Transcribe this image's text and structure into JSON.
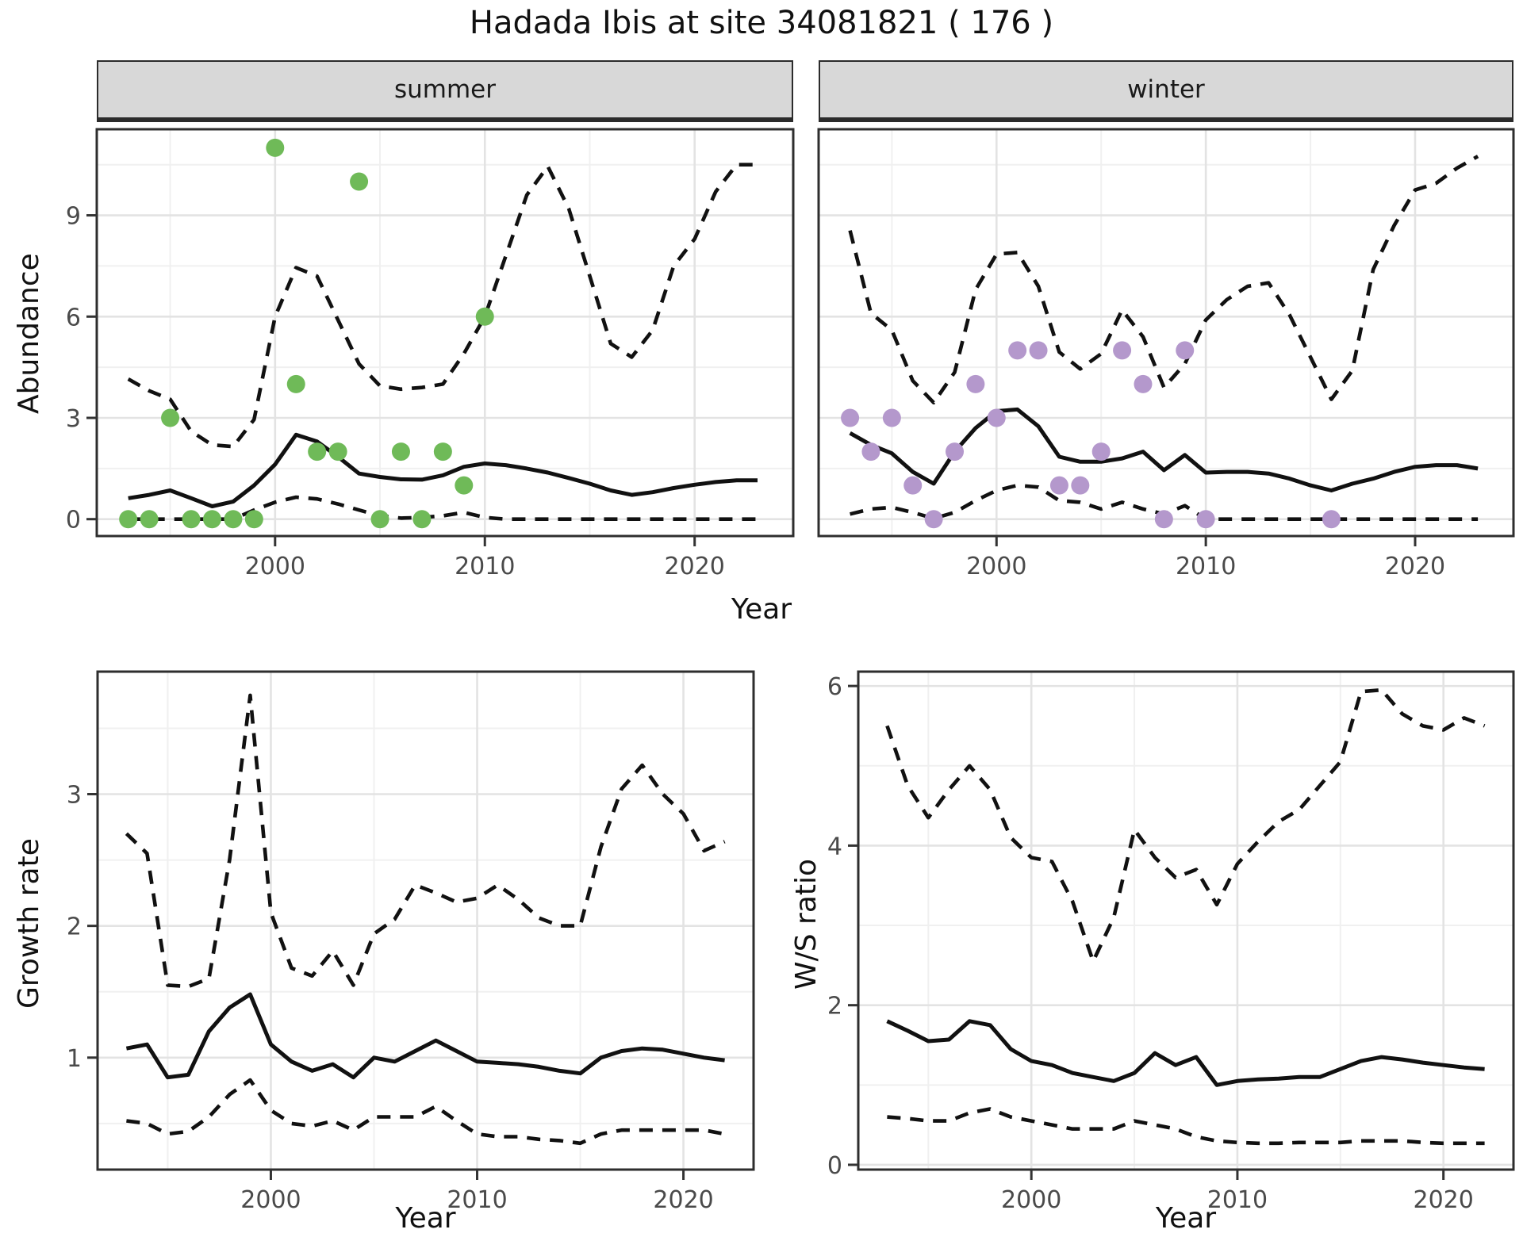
{
  "title": "Hadada Ibis at site 34081821 ( 176 )",
  "facets": {
    "summer": "summer",
    "winter": "winter"
  },
  "axis_titles": {
    "abundance": "Abundance",
    "year": "Year",
    "growth_rate": "Growth rate",
    "ws_ratio": "W/S ratio"
  },
  "colors": {
    "summer_points": "#6fba58",
    "winter_points": "#b498cc",
    "line": "#111111",
    "grid_major": "#e3e3e3",
    "grid_minor": "#f0f0f0",
    "panel_border": "#2e2e2e",
    "tick_mark": "#333333",
    "tick_text": "#4a4a4a",
    "strip_bg": "#d8d8d8"
  },
  "chart_data": [
    {
      "id": "summer-abundance",
      "type": "line",
      "facet": "summer",
      "xlabel": "Year",
      "ylabel": "Abundance",
      "xlim": [
        1991.5,
        2024.7
      ],
      "ylim": [
        -0.5,
        11.55
      ],
      "x_major": [
        2000,
        2010,
        2020
      ],
      "x_minor": [
        1995,
        2005,
        2015
      ],
      "y_major": [
        0,
        3,
        6,
        9
      ],
      "y_minor": [
        1.5,
        4.5,
        7.5,
        10.5
      ],
      "y_labels_shown": true,
      "years": [
        1993,
        1994,
        1995,
        1996,
        1997,
        1998,
        1999,
        2000,
        2001,
        2002,
        2003,
        2004,
        2005,
        2006,
        2007,
        2008,
        2009,
        2010,
        2011,
        2012,
        2013,
        2014,
        2015,
        2016,
        2017,
        2018,
        2019,
        2020,
        2021,
        2022,
        2023
      ],
      "series": [
        {
          "name": "upper CI",
          "style": "dashed",
          "values": [
            4.15,
            3.8,
            3.55,
            2.6,
            2.2,
            2.15,
            2.95,
            6.0,
            7.45,
            7.2,
            5.9,
            4.6,
            3.95,
            3.85,
            3.9,
            4.0,
            4.9,
            6.0,
            7.8,
            9.6,
            10.45,
            9.2,
            7.2,
            5.2,
            4.8,
            5.6,
            7.5,
            8.3,
            9.7,
            10.5,
            10.5
          ]
        },
        {
          "name": "median",
          "style": "solid",
          "values": [
            0.62,
            0.72,
            0.85,
            0.62,
            0.38,
            0.52,
            1.0,
            1.62,
            2.5,
            2.3,
            1.85,
            1.35,
            1.25,
            1.18,
            1.17,
            1.3,
            1.55,
            1.65,
            1.6,
            1.5,
            1.38,
            1.22,
            1.05,
            0.85,
            0.72,
            0.8,
            0.92,
            1.02,
            1.1,
            1.15,
            1.15
          ]
        },
        {
          "name": "lower CI",
          "style": "dashed",
          "values": [
            0,
            0,
            0,
            0,
            0,
            0,
            0.27,
            0.5,
            0.65,
            0.6,
            0.45,
            0.27,
            0.1,
            0.03,
            0.05,
            0.1,
            0.2,
            0.05,
            0,
            0,
            0,
            0,
            0,
            0,
            0,
            0,
            0,
            0,
            0,
            0,
            0
          ]
        }
      ],
      "points": {
        "color_key": "summer_points",
        "years": [
          1993,
          1994,
          1995,
          1996,
          1997,
          1998,
          1999,
          2000,
          2001,
          2002,
          2003,
          2004,
          2005,
          2006,
          2007,
          2008,
          2009,
          2010
        ],
        "values": [
          0,
          0,
          3,
          0,
          0,
          0,
          0,
          11,
          4,
          2,
          2,
          10,
          0,
          2,
          0,
          2,
          1,
          6
        ]
      }
    },
    {
      "id": "winter-abundance",
      "type": "line",
      "facet": "winter",
      "xlabel": "Year",
      "ylabel": "Abundance",
      "xlim": [
        1991.5,
        2024.7
      ],
      "ylim": [
        -0.5,
        11.55
      ],
      "x_major": [
        2000,
        2010,
        2020
      ],
      "x_minor": [
        1995,
        2005,
        2015
      ],
      "y_major": [
        0,
        3,
        6,
        9
      ],
      "y_minor": [
        1.5,
        4.5,
        7.5,
        10.5
      ],
      "y_labels_shown": false,
      "years": [
        1993,
        1994,
        1995,
        1996,
        1997,
        1998,
        1999,
        2000,
        2001,
        2002,
        2003,
        2004,
        2005,
        2006,
        2007,
        2008,
        2009,
        2010,
        2011,
        2012,
        2013,
        2014,
        2015,
        2016,
        2017,
        2018,
        2019,
        2020,
        2021,
        2022,
        2023
      ],
      "series": [
        {
          "name": "upper CI",
          "style": "dashed",
          "values": [
            8.55,
            6.1,
            5.6,
            4.1,
            3.45,
            4.35,
            6.8,
            7.85,
            7.9,
            6.9,
            4.95,
            4.45,
            4.9,
            6.2,
            5.4,
            3.9,
            4.6,
            5.9,
            6.5,
            6.9,
            7.0,
            6.05,
            4.8,
            3.55,
            4.4,
            7.4,
            8.7,
            9.75,
            9.95,
            10.4,
            10.75
          ]
        },
        {
          "name": "median",
          "style": "solid",
          "values": [
            2.55,
            2.2,
            1.95,
            1.4,
            1.05,
            2.0,
            2.7,
            3.2,
            3.25,
            2.75,
            1.85,
            1.7,
            1.7,
            1.8,
            2.0,
            1.45,
            1.9,
            1.38,
            1.4,
            1.4,
            1.35,
            1.2,
            1.0,
            0.85,
            1.05,
            1.2,
            1.4,
            1.55,
            1.6,
            1.6,
            1.5
          ]
        },
        {
          "name": "lower CI",
          "style": "dashed",
          "values": [
            0.15,
            0.3,
            0.35,
            0.2,
            0.02,
            0.2,
            0.55,
            0.85,
            1.0,
            0.95,
            0.55,
            0.5,
            0.3,
            0.5,
            0.3,
            0.15,
            0.4,
            0,
            0,
            0,
            0,
            0,
            0,
            0,
            0,
            0,
            0,
            0,
            0,
            0,
            0
          ]
        }
      ],
      "points": {
        "color_key": "winter_points",
        "years": [
          1993,
          1994,
          1995,
          1996,
          1997,
          1998,
          1999,
          2000,
          2001,
          2002,
          2003,
          2004,
          2005,
          2006,
          2007,
          2008,
          2009,
          2010,
          2016
        ],
        "values": [
          3,
          2,
          3,
          1,
          0,
          2,
          4,
          3,
          5,
          5,
          1,
          1,
          2,
          5,
          4,
          0,
          5,
          0,
          0
        ]
      }
    },
    {
      "id": "growth-rate",
      "type": "line",
      "facet": null,
      "xlabel": "Year",
      "ylabel": "Growth rate",
      "xlim": [
        1991.6,
        2023.4
      ],
      "ylim": [
        0.15,
        3.93
      ],
      "x_major": [
        2000,
        2010,
        2020
      ],
      "x_minor": [
        1995,
        2005,
        2015
      ],
      "y_major": [
        1,
        2,
        3
      ],
      "y_minor": [
        0.5,
        1.5,
        2.5,
        3.5
      ],
      "y_labels_shown": true,
      "years": [
        1993,
        1994,
        1995,
        1996,
        1997,
        1998,
        1999,
        2000,
        2001,
        2002,
        2003,
        2004,
        2005,
        2006,
        2007,
        2008,
        2009,
        2010,
        2011,
        2012,
        2013,
        2014,
        2015,
        2016,
        2017,
        2018,
        2019,
        2020,
        2021,
        2022
      ],
      "series": [
        {
          "name": "upper CI",
          "style": "dashed",
          "values": [
            2.7,
            2.55,
            1.55,
            1.54,
            1.6,
            2.5,
            3.75,
            2.1,
            1.68,
            1.62,
            1.81,
            1.55,
            1.94,
            2.05,
            2.31,
            2.25,
            2.18,
            2.21,
            2.31,
            2.2,
            2.06,
            2.0,
            2.0,
            2.6,
            3.04,
            3.22,
            3.0,
            2.85,
            2.57,
            2.64
          ]
        },
        {
          "name": "median",
          "style": "solid",
          "values": [
            1.07,
            1.1,
            0.85,
            0.87,
            1.2,
            1.38,
            1.48,
            1.1,
            0.97,
            0.9,
            0.95,
            0.85,
            1.0,
            0.97,
            1.05,
            1.13,
            1.05,
            0.97,
            0.96,
            0.95,
            0.93,
            0.9,
            0.88,
            1.0,
            1.05,
            1.07,
            1.06,
            1.03,
            1.0,
            0.98
          ]
        },
        {
          "name": "lower CI",
          "style": "dashed",
          "values": [
            0.52,
            0.5,
            0.42,
            0.44,
            0.55,
            0.72,
            0.83,
            0.6,
            0.5,
            0.48,
            0.52,
            0.45,
            0.55,
            0.55,
            0.55,
            0.63,
            0.52,
            0.42,
            0.4,
            0.4,
            0.38,
            0.37,
            0.35,
            0.42,
            0.45,
            0.45,
            0.45,
            0.45,
            0.45,
            0.42
          ]
        }
      ],
      "points": null
    },
    {
      "id": "ws-ratio",
      "type": "line",
      "facet": null,
      "xlabel": "Year",
      "ylabel": "W/S ratio",
      "xlim": [
        1991.6,
        2023.4
      ],
      "ylim": [
        -0.06,
        6.18
      ],
      "x_major": [
        2000,
        2010,
        2020
      ],
      "x_minor": [
        1995,
        2005,
        2015
      ],
      "y_major": [
        0,
        2,
        4,
        6
      ],
      "y_minor": [
        1,
        3,
        5
      ],
      "y_labels_shown": true,
      "years": [
        1993,
        1994,
        1995,
        1996,
        1997,
        1998,
        1999,
        2000,
        2001,
        2002,
        2003,
        2004,
        2005,
        2006,
        2007,
        2008,
        2009,
        2010,
        2011,
        2012,
        2013,
        2014,
        2015,
        2016,
        2017,
        2018,
        2019,
        2020,
        2021,
        2022
      ],
      "series": [
        {
          "name": "upper CI",
          "style": "dashed",
          "values": [
            5.5,
            4.75,
            4.35,
            4.7,
            5.0,
            4.7,
            4.1,
            3.85,
            3.8,
            3.3,
            2.55,
            3.1,
            4.2,
            3.85,
            3.6,
            3.7,
            3.26,
            3.77,
            4.05,
            4.3,
            4.45,
            4.75,
            5.05,
            5.93,
            5.95,
            5.65,
            5.5,
            5.45,
            5.6,
            5.5
          ]
        },
        {
          "name": "median",
          "style": "solid",
          "values": [
            1.8,
            1.68,
            1.55,
            1.57,
            1.8,
            1.75,
            1.45,
            1.3,
            1.25,
            1.15,
            1.1,
            1.05,
            1.15,
            1.4,
            1.25,
            1.35,
            1.0,
            1.05,
            1.07,
            1.08,
            1.1,
            1.1,
            1.2,
            1.3,
            1.35,
            1.32,
            1.28,
            1.25,
            1.22,
            1.2
          ]
        },
        {
          "name": "lower CI",
          "style": "dashed",
          "values": [
            0.6,
            0.58,
            0.55,
            0.55,
            0.65,
            0.7,
            0.6,
            0.55,
            0.5,
            0.45,
            0.45,
            0.45,
            0.55,
            0.5,
            0.45,
            0.35,
            0.3,
            0.28,
            0.27,
            0.27,
            0.28,
            0.28,
            0.28,
            0.3,
            0.3,
            0.3,
            0.28,
            0.27,
            0.27,
            0.27
          ]
        }
      ],
      "points": null
    }
  ]
}
